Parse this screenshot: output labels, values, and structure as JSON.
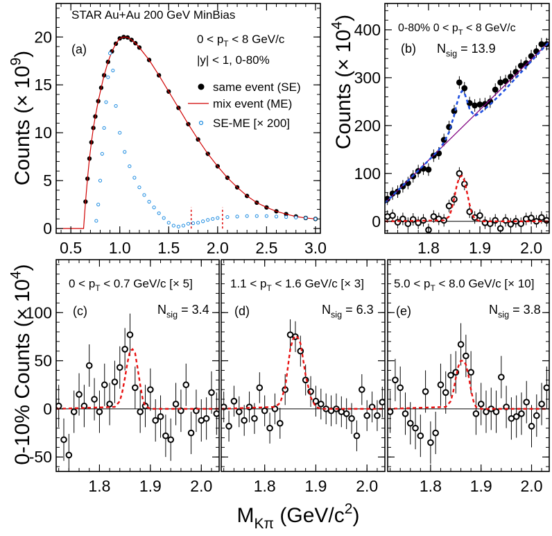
{
  "chart_data": [
    {
      "panel": "a",
      "type": "scatter",
      "title": "STAR Au+Au 200 GeV MinBias",
      "panel_label": "(a)",
      "annotations": [
        "0 < p_T < 8 GeV/c",
        "|y| < 1,  0-80%"
      ],
      "ylabel": "Counts (× 10^9)",
      "xlim": [
        0.35,
        3.05
      ],
      "ylim": [
        -0.5,
        23.5
      ],
      "xticks": [
        "0.5",
        "1.0",
        "1.5",
        "2.0",
        "2.5",
        "3.0"
      ],
      "yticks": [
        "0",
        "5",
        "10",
        "15",
        "20"
      ],
      "legend": [
        "same event (SE)",
        "mix event (ME)",
        "SE-ME [× 200]"
      ],
      "legend_position": "right",
      "marker_lines_x": [
        1.73,
        2.05
      ],
      "series": [
        {
          "name": "same event (SE)",
          "style": "filled",
          "x": [
            0.65,
            0.67,
            0.69,
            0.71,
            0.73,
            0.75,
            0.78,
            0.81,
            0.84,
            0.88,
            0.92,
            0.96,
            1.0,
            1.04,
            1.08,
            1.12,
            1.16,
            1.2,
            1.3,
            1.4,
            1.5,
            1.6,
            1.7,
            1.8,
            1.9,
            2.0,
            2.1,
            2.2,
            2.3,
            2.4,
            2.5,
            2.6,
            2.7,
            2.8,
            2.9,
            3.0
          ],
          "y": [
            2.8,
            5.2,
            7.3,
            9.0,
            10.5,
            11.7,
            13.3,
            14.7,
            16.0,
            17.4,
            18.5,
            19.3,
            19.85,
            20.0,
            19.95,
            19.7,
            19.35,
            18.9,
            17.6,
            16.0,
            14.3,
            12.6,
            10.9,
            9.3,
            7.8,
            6.5,
            5.3,
            4.3,
            3.4,
            2.7,
            2.2,
            1.8,
            1.5,
            1.25,
            1.1,
            1.0
          ]
        },
        {
          "name": "mix event (ME)",
          "style": "line",
          "x": [
            0.35,
            0.63,
            0.65,
            0.67,
            0.69,
            0.71,
            0.73,
            0.75,
            0.78,
            0.81,
            0.84,
            0.88,
            0.92,
            0.96,
            1.0,
            1.04,
            1.08,
            1.12,
            1.16,
            1.2,
            1.3,
            1.4,
            1.5,
            1.6,
            1.7,
            1.8,
            1.9,
            2.0,
            2.1,
            2.2,
            2.3,
            2.4,
            2.5,
            2.6,
            2.7,
            2.8,
            2.9,
            3.0
          ],
          "y": [
            0,
            0,
            2.8,
            5.2,
            7.3,
            9.0,
            10.5,
            11.7,
            13.3,
            14.7,
            16.0,
            17.4,
            18.5,
            19.3,
            19.85,
            20.0,
            19.95,
            19.7,
            19.35,
            18.9,
            17.6,
            16.0,
            14.3,
            12.6,
            10.9,
            9.3,
            7.8,
            6.5,
            5.3,
            4.3,
            3.4,
            2.7,
            2.2,
            1.8,
            1.5,
            1.25,
            1.1,
            1.0
          ]
        },
        {
          "name": "SE-ME [× 200]",
          "style": "open",
          "x": [
            0.76,
            0.78,
            0.8,
            0.82,
            0.84,
            0.86,
            0.88,
            0.9,
            0.93,
            0.96,
            1.0,
            1.05,
            1.1,
            1.15,
            1.2,
            1.25,
            1.3,
            1.35,
            1.4,
            1.45,
            1.5,
            1.55,
            1.6,
            1.65,
            1.7,
            1.75,
            1.8,
            1.85,
            1.9,
            1.95,
            2.0,
            2.1,
            2.2,
            2.3,
            2.4,
            2.5,
            2.6,
            2.7,
            2.8,
            2.9,
            3.0
          ],
          "y": [
            0.8,
            2.5,
            5.0,
            7.8,
            10.5,
            13.2,
            15.8,
            18.3,
            16.5,
            12.8,
            10.0,
            8.0,
            6.5,
            5.3,
            4.3,
            3.5,
            2.8,
            2.2,
            1.6,
            1.1,
            0.6,
            0.3,
            0.2,
            0.3,
            0.5,
            0.55,
            0.6,
            0.75,
            0.9,
            1.0,
            1.1,
            1.2,
            1.25,
            1.3,
            1.3,
            1.3,
            1.25,
            1.2,
            1.15,
            1.1,
            1.0
          ]
        }
      ]
    },
    {
      "panel": "b",
      "type": "scatter",
      "panel_label": "(b)",
      "annotations": [
        "0-80%   0 < p_T < 8 GeV/c",
        "N_sig = 13.9"
      ],
      "ylabel": "Counts (× 10^4)",
      "xlim": [
        1.715,
        2.035
      ],
      "ylim": [
        -25,
        455
      ],
      "xticks": [
        "1.8",
        "1.9",
        "2.0"
      ],
      "yticks": [
        "0",
        "100",
        "200",
        "300",
        "400"
      ],
      "series": [
        {
          "name": "SE-ME",
          "style": "filled",
          "x": [
            1.72,
            1.73,
            1.74,
            1.75,
            1.76,
            1.77,
            1.78,
            1.79,
            1.8,
            1.81,
            1.82,
            1.83,
            1.84,
            1.85,
            1.86,
            1.87,
            1.88,
            1.89,
            1.9,
            1.91,
            1.92,
            1.93,
            1.94,
            1.95,
            1.96,
            1.97,
            1.98,
            1.99,
            2.0,
            2.01,
            2.02,
            2.03
          ],
          "y": [
            47,
            58,
            62,
            73,
            80,
            94,
            105,
            110,
            108,
            137,
            142,
            170,
            197,
            230,
            290,
            278,
            247,
            242,
            244,
            245,
            250,
            275,
            290,
            293,
            302,
            312,
            325,
            330,
            345,
            355,
            370,
            370
          ]
        },
        {
          "name": "linear fit",
          "style": "line",
          "x": [
            1.715,
            2.035
          ],
          "y": [
            38,
            375
          ]
        },
        {
          "name": "fit (Gaussian + linear)",
          "style": "dashed",
          "x": [
            1.715,
            1.8,
            1.82,
            1.83,
            1.84,
            1.85,
            1.855,
            1.86,
            1.865,
            1.87,
            1.875,
            1.88,
            1.89,
            1.9,
            1.92,
            1.95,
            2.035
          ],
          "y": [
            38,
            127,
            149,
            165,
            186,
            222,
            245,
            264,
            272,
            268,
            252,
            234,
            220,
            226,
            244,
            276,
            375
          ]
        },
        {
          "name": "signal (open)",
          "style": "open",
          "x": [
            1.72,
            1.73,
            1.74,
            1.75,
            1.76,
            1.77,
            1.78,
            1.79,
            1.8,
            1.81,
            1.82,
            1.83,
            1.84,
            1.85,
            1.86,
            1.87,
            1.88,
            1.89,
            1.9,
            1.91,
            1.92,
            1.93,
            1.94,
            1.95,
            1.96,
            1.97,
            1.98,
            1.99,
            2.0,
            2.01,
            2.02,
            2.03
          ],
          "y": [
            10,
            12,
            -2,
            5,
            -5,
            4,
            -3,
            2,
            -18,
            10,
            5,
            2,
            32,
            46,
            100,
            78,
            20,
            8,
            12,
            -3,
            -5,
            2,
            -15,
            2,
            -6,
            0,
            -5,
            5,
            7,
            0,
            8,
            2
          ]
        },
        {
          "name": "signal fit",
          "style": "dashed",
          "x": [
            1.715,
            1.83,
            1.84,
            1.845,
            1.85,
            1.855,
            1.86,
            1.865,
            1.87,
            1.875,
            1.88,
            1.885,
            1.89,
            1.9,
            2.035
          ],
          "y": [
            0,
            2,
            10,
            25,
            48,
            75,
            92,
            95,
            85,
            60,
            35,
            15,
            5,
            0,
            0
          ]
        }
      ]
    },
    {
      "panel": "c",
      "type": "scatter",
      "panel_label": "(c)",
      "annotations": [
        "0 < p_T < 0.7 GeV/c [× 5]",
        "N_sig = 3.4"
      ],
      "ylabel": "0-10% Counts (× 10^4)",
      "xlim": [
        1.715,
        2.035
      ],
      "ylim": [
        -65,
        155
      ],
      "xticks": [
        "1.8",
        "1.9",
        "2.0"
      ],
      "yticks": [
        "-50",
        "0",
        "50",
        "100"
      ],
      "series": [
        {
          "name": "data",
          "style": "open",
          "x": [
            1.72,
            1.73,
            1.74,
            1.75,
            1.76,
            1.77,
            1.78,
            1.79,
            1.8,
            1.81,
            1.82,
            1.83,
            1.84,
            1.85,
            1.86,
            1.87,
            1.88,
            1.89,
            1.9,
            1.91,
            1.92,
            1.93,
            1.94,
            1.95,
            1.96,
            1.97,
            1.98,
            1.99,
            2.0,
            2.01,
            2.02,
            2.03
          ],
          "y": [
            3,
            -32,
            -48,
            -3,
            15,
            3,
            45,
            10,
            -3,
            25,
            5,
            28,
            43,
            62,
            77,
            22,
            -3,
            3,
            20,
            -12,
            -8,
            -28,
            -32,
            5,
            -2,
            25,
            -25,
            -2,
            -12,
            -10,
            17,
            -5
          ],
          "err": [
            22,
            22,
            22,
            22,
            22,
            22,
            22,
            22,
            22,
            22,
            22,
            22,
            22,
            22,
            22,
            22,
            22,
            22,
            22,
            22,
            22,
            22,
            22,
            22,
            22,
            22,
            22,
            22,
            22,
            22,
            22,
            22
          ]
        },
        {
          "name": "fit",
          "style": "dashed",
          "x": [
            1.715,
            1.83,
            1.84,
            1.845,
            1.85,
            1.855,
            1.86,
            1.865,
            1.87,
            1.875,
            1.88,
            1.885,
            1.89,
            1.9,
            2.035
          ],
          "y": [
            0,
            2,
            8,
            18,
            32,
            48,
            60,
            62,
            58,
            42,
            25,
            10,
            3,
            0,
            0
          ]
        }
      ]
    },
    {
      "panel": "d",
      "type": "scatter",
      "panel_label": "(d)",
      "annotations": [
        "1.1 < p_T < 1.6 GeV/c [× 3]",
        "N_sig = 6.3"
      ],
      "xlim": [
        1.715,
        2.035
      ],
      "ylim": [
        -65,
        155
      ],
      "xticks": [
        "1.8",
        "1.9",
        "2.0"
      ],
      "series": [
        {
          "name": "data",
          "style": "open",
          "x": [
            1.72,
            1.73,
            1.74,
            1.75,
            1.76,
            1.77,
            1.78,
            1.79,
            1.8,
            1.81,
            1.82,
            1.83,
            1.84,
            1.85,
            1.86,
            1.87,
            1.88,
            1.89,
            1.9,
            1.91,
            1.92,
            1.93,
            1.94,
            1.95,
            1.96,
            1.97,
            1.98,
            1.99,
            2.0,
            2.01,
            2.02,
            2.03
          ],
          "y": [
            2,
            -18,
            8,
            -3,
            -12,
            2,
            -10,
            22,
            -2,
            -20,
            0,
            -15,
            20,
            77,
            75,
            60,
            30,
            18,
            8,
            5,
            0,
            -2,
            0,
            -3,
            -5,
            -10,
            -28,
            20,
            -7,
            2,
            -7,
            7
          ],
          "err": [
            16,
            16,
            16,
            16,
            16,
            16,
            16,
            16,
            16,
            16,
            16,
            16,
            16,
            16,
            16,
            16,
            16,
            16,
            16,
            16,
            16,
            16,
            16,
            16,
            16,
            16,
            16,
            16,
            16,
            16,
            16,
            16
          ]
        },
        {
          "name": "fit",
          "style": "dashed",
          "x": [
            1.715,
            1.82,
            1.83,
            1.84,
            1.845,
            1.85,
            1.855,
            1.86,
            1.865,
            1.87,
            1.875,
            1.88,
            1.89,
            1.9,
            1.91,
            2.035
          ],
          "y": [
            0,
            2,
            6,
            22,
            42,
            62,
            72,
            76,
            74,
            68,
            52,
            35,
            12,
            2,
            0,
            0
          ]
        }
      ]
    },
    {
      "panel": "e",
      "type": "scatter",
      "panel_label": "(e)",
      "annotations": [
        "5.0 < p_T < 8.0 GeV/c [× 10]",
        "N_sig = 3.8"
      ],
      "xlim": [
        1.715,
        2.035
      ],
      "ylim": [
        -65,
        155
      ],
      "xticks": [
        "1.8",
        "1.9",
        "2.0"
      ],
      "series": [
        {
          "name": "data",
          "style": "open",
          "x": [
            1.72,
            1.73,
            1.74,
            1.75,
            1.76,
            1.77,
            1.78,
            1.79,
            1.8,
            1.81,
            1.82,
            1.83,
            1.84,
            1.85,
            1.86,
            1.87,
            1.88,
            1.89,
            1.9,
            1.91,
            1.92,
            1.93,
            1.94,
            1.95,
            1.96,
            1.97,
            1.98,
            1.99,
            2.0,
            2.01,
            2.02,
            2.03
          ],
          "y": [
            -3,
            30,
            22,
            -5,
            -15,
            -20,
            -28,
            18,
            -35,
            -25,
            25,
            17,
            35,
            38,
            67,
            55,
            38,
            -5,
            5,
            -3,
            0,
            -3,
            33,
            2,
            -10,
            -8,
            -5,
            7,
            -18,
            -7,
            5,
            22
          ],
          "err": [
            22,
            22,
            22,
            22,
            22,
            22,
            22,
            22,
            22,
            22,
            22,
            22,
            22,
            22,
            22,
            22,
            22,
            22,
            22,
            22,
            22,
            22,
            22,
            22,
            22,
            22,
            22,
            22,
            22,
            22,
            22,
            22
          ]
        },
        {
          "name": "fit",
          "style": "dashed",
          "x": [
            1.715,
            1.83,
            1.84,
            1.845,
            1.85,
            1.855,
            1.86,
            1.865,
            1.87,
            1.875,
            1.88,
            1.885,
            1.89,
            1.9,
            2.035
          ],
          "y": [
            0,
            2,
            8,
            18,
            32,
            44,
            50,
            50,
            46,
            35,
            20,
            8,
            2,
            0,
            0
          ]
        }
      ]
    }
  ],
  "figure": {
    "xlabel": "M_Kπ (GeV/c²)",
    "colors": {
      "filled": "#000000",
      "me_line": "#d00000",
      "blue_open": "#1a8ae0",
      "fit_dashed": "#e01010",
      "blue_dashed": "#2050e0",
      "linear_fit": "#800080",
      "bottom_fit": "#e81010"
    }
  }
}
